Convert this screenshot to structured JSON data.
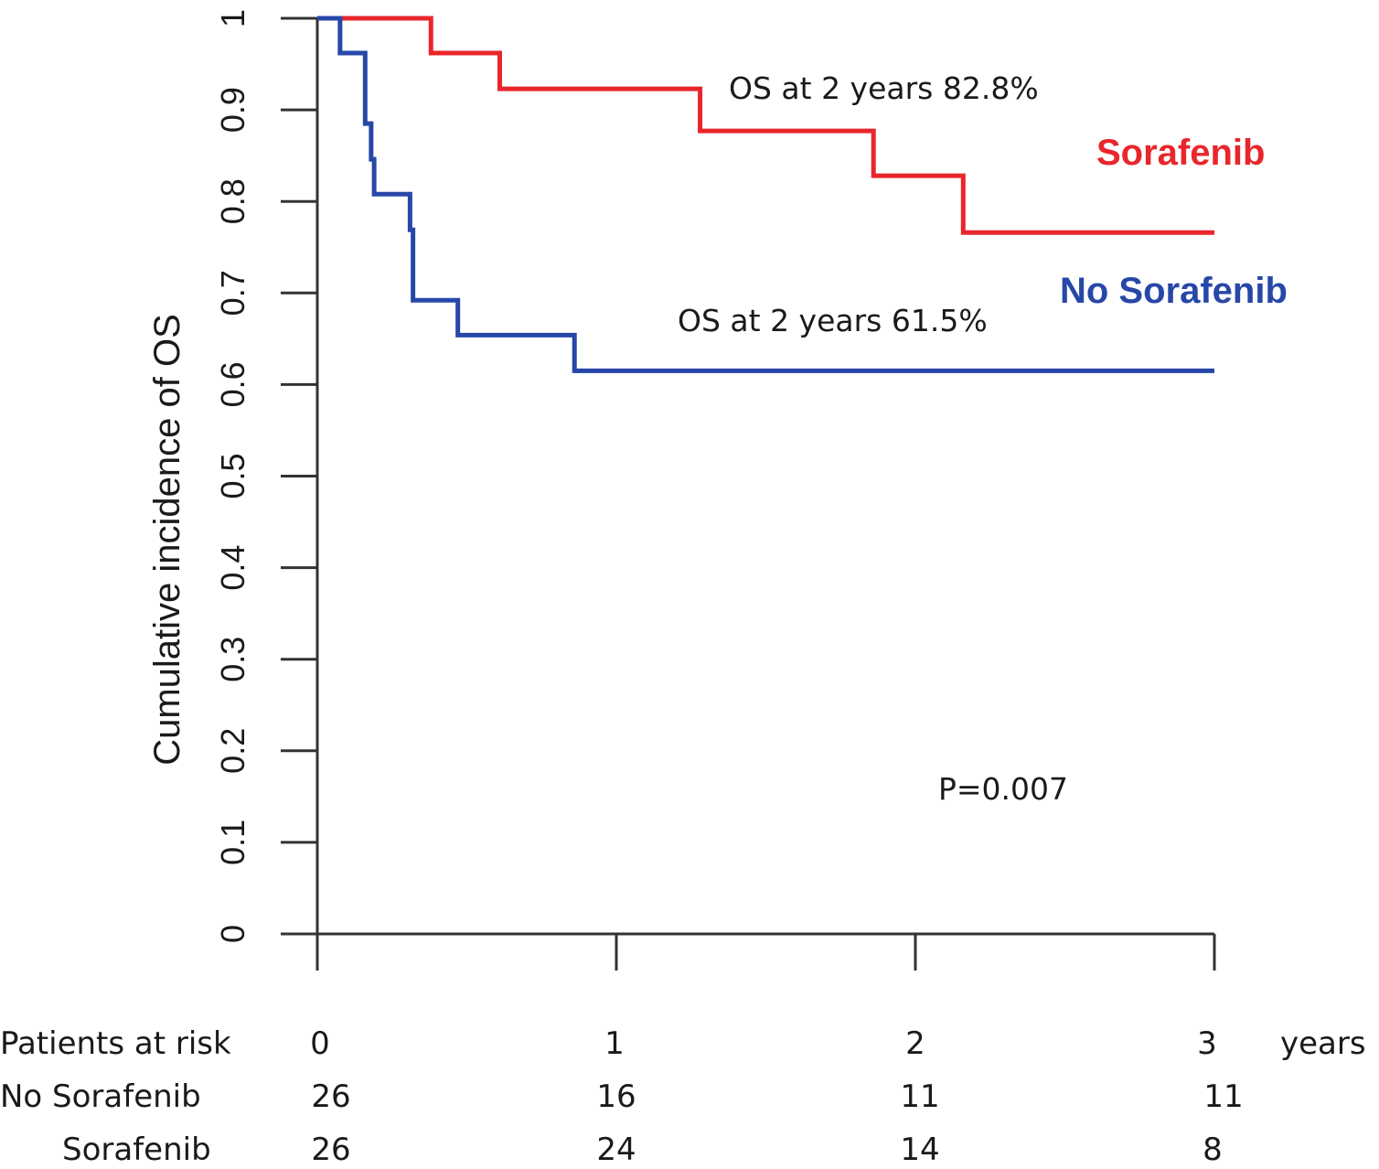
{
  "chart_data": {
    "type": "line",
    "subtype": "kaplan-meier-step",
    "title": "",
    "xlabel": "years",
    "ylabel": "Cumulative incidence of OS",
    "xlim": [
      0,
      3
    ],
    "ylim": [
      0,
      1
    ],
    "x_ticks": [
      0,
      1,
      2,
      3
    ],
    "y_ticks": [
      0,
      0.1,
      0.2,
      0.3,
      0.4,
      0.5,
      0.6,
      0.7,
      0.8,
      0.9,
      1
    ],
    "y_tick_labels": [
      "0",
      "0.1",
      "0.2",
      "0.3",
      "0.4",
      "0.5",
      "0.6",
      "0.7",
      "0.8",
      "0.9",
      "1"
    ],
    "grid": false,
    "series": [
      {
        "name": "Sorafenib",
        "color": "#e8262c",
        "x": [
          0,
          0.38,
          0.61,
          1.28,
          1.86,
          2.16,
          3.0
        ],
        "y": [
          1.0,
          0.962,
          0.923,
          0.877,
          0.828,
          0.766,
          0.766
        ]
      },
      {
        "name": "No Sorafenib",
        "color": "#2747a8",
        "x": [
          0,
          0.076,
          0.16,
          0.18,
          0.19,
          0.31,
          0.32,
          0.47,
          0.86,
          3.0
        ],
        "y": [
          1.0,
          0.962,
          0.885,
          0.846,
          0.808,
          0.769,
          0.692,
          0.654,
          0.615,
          0.615
        ]
      }
    ],
    "legend": [
      {
        "label": "Sorafenib",
        "color": "#e8262c",
        "placement": "right, near curve"
      },
      {
        "label": "No Sorafenib",
        "color": "#2747a8",
        "placement": "right, near curve"
      }
    ],
    "annotations": [
      {
        "text": "OS at 2 years 82.8%",
        "series": "Sorafenib"
      },
      {
        "text": "OS at 2 years 61.5%",
        "series": "No Sorafenib"
      },
      {
        "text": "P=0.007"
      }
    ],
    "risk_table": {
      "header_label": "Patients at risk",
      "time_points": [
        "0",
        "1",
        "2",
        "3"
      ],
      "unit": "years",
      "rows": [
        {
          "label": "No Sorafenib",
          "values": [
            "26",
            "16",
            "11",
            "11"
          ]
        },
        {
          "label": "Sorafenib",
          "values": [
            "26",
            "24",
            "14",
            "8"
          ]
        }
      ]
    }
  }
}
